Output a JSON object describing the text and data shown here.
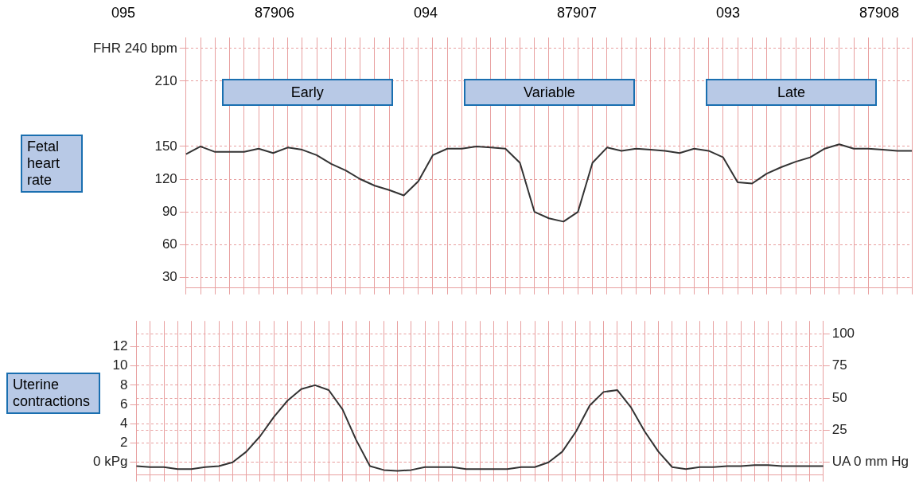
{
  "chart_data": [
    {
      "type": "line",
      "ylabel": "Fetal heart rate",
      "categories": [
        null,
        null,
        null,
        null,
        null,
        null,
        null,
        null,
        null,
        null,
        null,
        null,
        null,
        null,
        null,
        null,
        null,
        null,
        null,
        null,
        null,
        null,
        null,
        null,
        null,
        null,
        null,
        null,
        null,
        null,
        null,
        null,
        null,
        null,
        null,
        null,
        null,
        null,
        null,
        null,
        null,
        null,
        null,
        null,
        null,
        null,
        null,
        null,
        null,
        null,
        null
      ],
      "series": [
        {
          "color": "#333333",
          "values": [
            143,
            150,
            145,
            145,
            145,
            148,
            144,
            149,
            147,
            142,
            134,
            128,
            120,
            114,
            110,
            105,
            118,
            142,
            148,
            148,
            150,
            149,
            148,
            135,
            90,
            84,
            81,
            90,
            135,
            149,
            146,
            148,
            147,
            146,
            144,
            148,
            146,
            140,
            117,
            116,
            125,
            131,
            136,
            140,
            148,
            152,
            148,
            148,
            147,
            146,
            146
          ]
        }
      ],
      "ylim": [
        20,
        250
      ],
      "yticks": [
        30,
        60,
        90,
        120,
        150,
        210,
        {
          "value": 240,
          "label": "FHR 240 bpm"
        }
      ],
      "grid": true,
      "tick_labels": "y",
      "marker": "none",
      "line_style": "solid",
      "annotations": [
        "095",
        "87906",
        "094",
        "87907",
        "093",
        "87908",
        "Early",
        "Variable",
        "Late"
      ]
    },
    {
      "type": "line",
      "ylabel": "Uterine contractions",
      "categories": [
        null,
        null,
        null,
        null,
        null,
        null,
        null,
        null,
        null,
        null,
        null,
        null,
        null,
        null,
        null,
        null,
        null,
        null,
        null,
        null,
        null,
        null,
        null,
        null,
        null,
        null,
        null,
        null,
        null,
        null,
        null,
        null,
        null,
        null,
        null,
        null,
        null,
        null,
        null,
        null,
        null,
        null,
        null,
        null,
        null,
        null,
        null,
        null,
        null,
        null,
        null
      ],
      "series": [
        {
          "color": "#333333",
          "values": [
            -0.4,
            -0.5,
            -0.5,
            -0.7,
            -0.7,
            -0.5,
            -0.4,
            0,
            1.1,
            2.7,
            4.7,
            6.4,
            7.6,
            8,
            7.5,
            5.5,
            2.3,
            -0.4,
            -0.8,
            -0.9,
            -0.8,
            -0.5,
            -0.5,
            -0.5,
            -0.7,
            -0.7,
            -0.7,
            -0.7,
            -0.5,
            -0.5,
            0,
            1.1,
            3.2,
            5.9,
            7.3,
            7.5,
            5.7,
            3.2,
            1.1,
            -0.5,
            -0.7,
            -0.5,
            -0.5,
            -0.4,
            -0.4,
            -0.3,
            -0.3,
            -0.4,
            -0.4,
            -0.4,
            -0.4
          ]
        }
      ],
      "ylim": [
        -1.33,
        14.67
      ],
      "yticks": [
        {
          "value": 0,
          "label": "0 kPg"
        },
        2,
        4,
        6,
        8,
        10,
        12
      ],
      "y2lim": [
        -10,
        110
      ],
      "y2ticks": [
        {
          "value": 0,
          "label": "UA 0 mm Hg"
        },
        25,
        50,
        75,
        100
      ],
      "grid": true,
      "tick_labels": "y",
      "marker": "none",
      "line_style": "solid"
    }
  ]
}
